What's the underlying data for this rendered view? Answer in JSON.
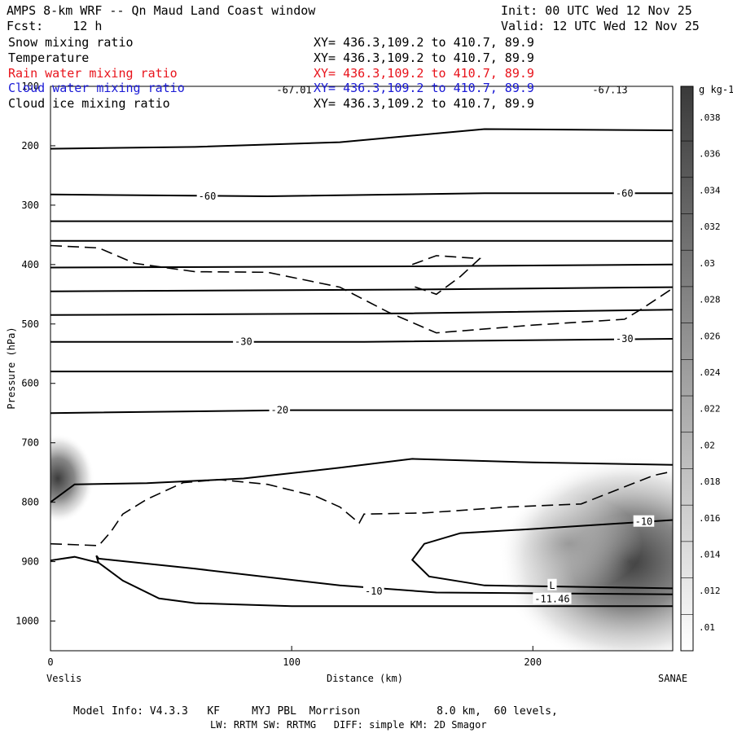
{
  "header": {
    "title": "AMPS 8-km WRF -- Qn Maud Land Coast window",
    "init": "Init: 00 UTC Wed 12 Nov 25",
    "fcst": "Fcst:    12 h",
    "valid": "Valid: 12 UTC Wed 12 Nov 25"
  },
  "fields": [
    {
      "name": "Snow mixing ratio",
      "xy": "XY= 436.3,109.2 to 410.7, 89.9",
      "color": "#000000"
    },
    {
      "name": "Temperature",
      "xy": "XY= 436.3,109.2 to 410.7, 89.9",
      "color": "#000000"
    },
    {
      "name": "Rain water mixing ratio",
      "xy": "XY= 436.3,109.2 to 410.7, 89.9",
      "color": "#e8131b"
    },
    {
      "name": "Cloud water mixing ratio",
      "xy": "XY= 436.3,109.2 to 410.7, 89.9",
      "color": "#1a1ad6"
    },
    {
      "name": "Cloud ice mixing ratio",
      "xy": "XY= 436.3,109.2 to 410.7, 89.9",
      "color": "#000000"
    }
  ],
  "chart_data": {
    "type": "cross-section",
    "xlabel": "Distance (km)",
    "ylabel": "Pressure (hPa)",
    "xlim": [
      0,
      258
    ],
    "ylim": [
      1050,
      100
    ],
    "x_ticks": [
      0,
      100,
      200
    ],
    "y_ticks": [
      100,
      200,
      300,
      400,
      500,
      600,
      700,
      800,
      900,
      1000
    ],
    "left_endpoint": "Veslis",
    "right_endpoint": "SANAE",
    "colorbar": {
      "unit": "g kg-1",
      "ticks": [
        ".01",
        ".012",
        ".014",
        ".016",
        ".018",
        ".02",
        ".022",
        ".024",
        ".026",
        ".028",
        ".03",
        ".032",
        ".034",
        ".036",
        ".038"
      ]
    },
    "temperature_labels": [
      {
        "text": "-67.01",
        "x": 101,
        "p": 106
      },
      {
        "text": "-67.13",
        "x": 232,
        "p": 106
      },
      {
        "text": "-60",
        "x": 65,
        "p": 285
      },
      {
        "text": "-60",
        "x": 238,
        "p": 280
      },
      {
        "text": "-30",
        "x": 80,
        "p": 530
      },
      {
        "text": "-30",
        "x": 238,
        "p": 525
      },
      {
        "text": "-20",
        "x": 95,
        "p": 645
      },
      {
        "text": "-10",
        "x": 246,
        "p": 833
      },
      {
        "text": "-10",
        "x": 134,
        "p": 950
      },
      {
        "text": "L",
        "x": 208,
        "p": 940
      },
      {
        "text": "-11.46",
        "x": 208,
        "p": 963
      }
    ],
    "temperature_isotherms": [
      [
        [
          0,
          205
        ],
        [
          60,
          202
        ],
        [
          120,
          194
        ],
        [
          180,
          172
        ],
        [
          258,
          174
        ]
      ],
      [
        [
          0,
          282
        ],
        [
          90,
          285
        ],
        [
          180,
          280
        ],
        [
          258,
          280
        ]
      ],
      [
        [
          0,
          327
        ],
        [
          258,
          327
        ]
      ],
      [
        [
          0,
          360
        ],
        [
          258,
          360
        ]
      ],
      [
        [
          0,
          405
        ],
        [
          150,
          403
        ],
        [
          258,
          400
        ]
      ],
      [
        [
          0,
          445
        ],
        [
          150,
          442
        ],
        [
          258,
          438
        ]
      ],
      [
        [
          0,
          485
        ],
        [
          150,
          482
        ],
        [
          258,
          476
        ]
      ],
      [
        [
          0,
          530
        ],
        [
          130,
          530
        ],
        [
          258,
          525
        ]
      ],
      [
        [
          0,
          580
        ],
        [
          258,
          580
        ]
      ],
      [
        [
          0,
          650
        ],
        [
          100,
          645
        ],
        [
          258,
          645
        ]
      ],
      [
        [
          0,
          800
        ],
        [
          10,
          770
        ],
        [
          40,
          768
        ],
        [
          80,
          760
        ],
        [
          120,
          742
        ],
        [
          150,
          727
        ],
        [
          200,
          733
        ],
        [
          258,
          737
        ]
      ],
      [
        [
          0,
          898
        ],
        [
          10,
          892
        ],
        [
          20,
          902
        ],
        [
          30,
          932
        ],
        [
          45,
          962
        ],
        [
          60,
          970
        ],
        [
          100,
          975
        ],
        [
          258,
          975
        ]
      ],
      [
        [
          258,
          830
        ],
        [
          200,
          845
        ],
        [
          170,
          852
        ],
        [
          155,
          870
        ],
        [
          150,
          897
        ],
        [
          157,
          925
        ],
        [
          180,
          940
        ],
        [
          258,
          945
        ]
      ],
      [
        [
          20,
          903
        ],
        [
          19,
          890
        ],
        [
          20,
          895
        ],
        [
          60,
          912
        ],
        [
          120,
          940
        ],
        [
          160,
          952
        ],
        [
          258,
          955
        ]
      ]
    ],
    "cloud_ice_dashed": [
      [
        [
          0,
          368
        ],
        [
          20,
          372
        ],
        [
          35,
          398
        ],
        [
          60,
          412
        ],
        [
          90,
          413
        ],
        [
          120,
          438
        ],
        [
          140,
          480
        ],
        [
          160,
          515
        ],
        [
          200,
          502
        ],
        [
          238,
          492
        ],
        [
          245,
          475
        ],
        [
          258,
          440
        ]
      ],
      [
        [
          150,
          400
        ],
        [
          160,
          385
        ],
        [
          178,
          390
        ],
        [
          170,
          420
        ],
        [
          160,
          450
        ],
        [
          150,
          436
        ]
      ],
      [
        [
          0,
          870
        ],
        [
          20,
          873
        ],
        [
          25,
          850
        ],
        [
          30,
          820
        ],
        [
          40,
          795
        ],
        [
          55,
          767
        ],
        [
          70,
          762
        ],
        [
          90,
          770
        ],
        [
          110,
          790
        ],
        [
          120,
          808
        ],
        [
          128,
          835
        ],
        [
          130,
          820
        ],
        [
          155,
          818
        ],
        [
          190,
          808
        ],
        [
          220,
          803
        ],
        [
          250,
          755
        ],
        [
          258,
          748
        ]
      ]
    ],
    "snow_shading": [
      {
        "x": 240,
        "p": 900,
        "value": 0.04
      },
      {
        "x": 215,
        "p": 870,
        "value": 0.025
      },
      {
        "x": 3,
        "p": 760,
        "value": 0.03
      }
    ]
  },
  "footer": {
    "line1": "Model Info: V4.3.3   KF     MYJ PBL  Morrison            8.0 km,  60 levels,",
    "line2": "LW: RRTM SW: RRTMG   DIFF: simple KM: 2D Smagor"
  }
}
